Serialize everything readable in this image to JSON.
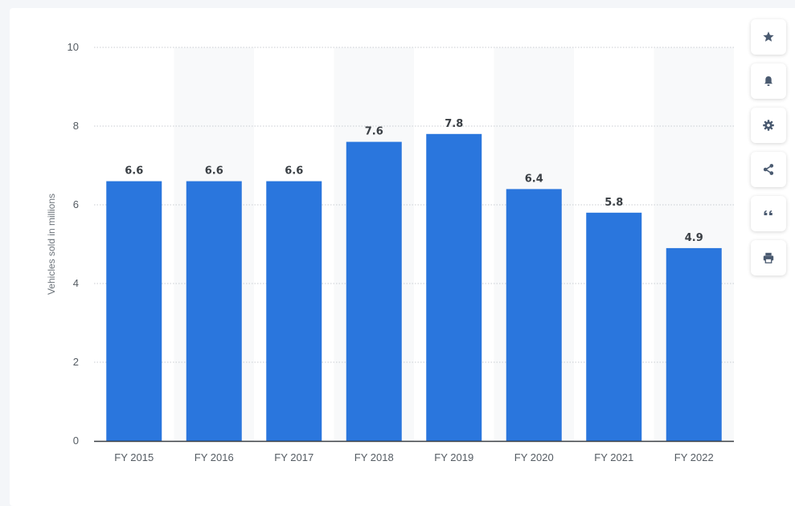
{
  "chart_data": {
    "type": "bar",
    "title": "",
    "xlabel": "",
    "ylabel": "Vehicles sold in millions",
    "categories": [
      "FY 2015",
      "FY 2016",
      "FY 2017",
      "FY 2018",
      "FY 2019",
      "FY 2020",
      "FY 2021",
      "FY 2022"
    ],
    "values": [
      6.6,
      6.6,
      6.6,
      7.6,
      7.8,
      6.4,
      5.8,
      4.9
    ],
    "value_labels": [
      "6.6",
      "6.6",
      "6.6",
      "7.6",
      "7.8",
      "6.4",
      "5.8",
      "4.9"
    ],
    "ylim": [
      0,
      10
    ],
    "yticks": [
      0,
      2,
      4,
      6,
      8,
      10
    ],
    "ytick_labels": [
      "0",
      "2",
      "4",
      "6",
      "8",
      "10"
    ],
    "grid": true,
    "legend": "none",
    "bar_color": "#2a76dd",
    "alternate_band_color": "#f8f9fa"
  },
  "toolbar": {
    "buttons": [
      {
        "name": "favorite-button",
        "icon": "star-icon"
      },
      {
        "name": "notification-button",
        "icon": "bell-icon"
      },
      {
        "name": "settings-button",
        "icon": "gear-icon"
      },
      {
        "name": "share-button",
        "icon": "share-icon"
      },
      {
        "name": "cite-button",
        "icon": "quote-icon"
      },
      {
        "name": "print-button",
        "icon": "print-icon"
      }
    ],
    "icon_color": "#4a5a70"
  }
}
